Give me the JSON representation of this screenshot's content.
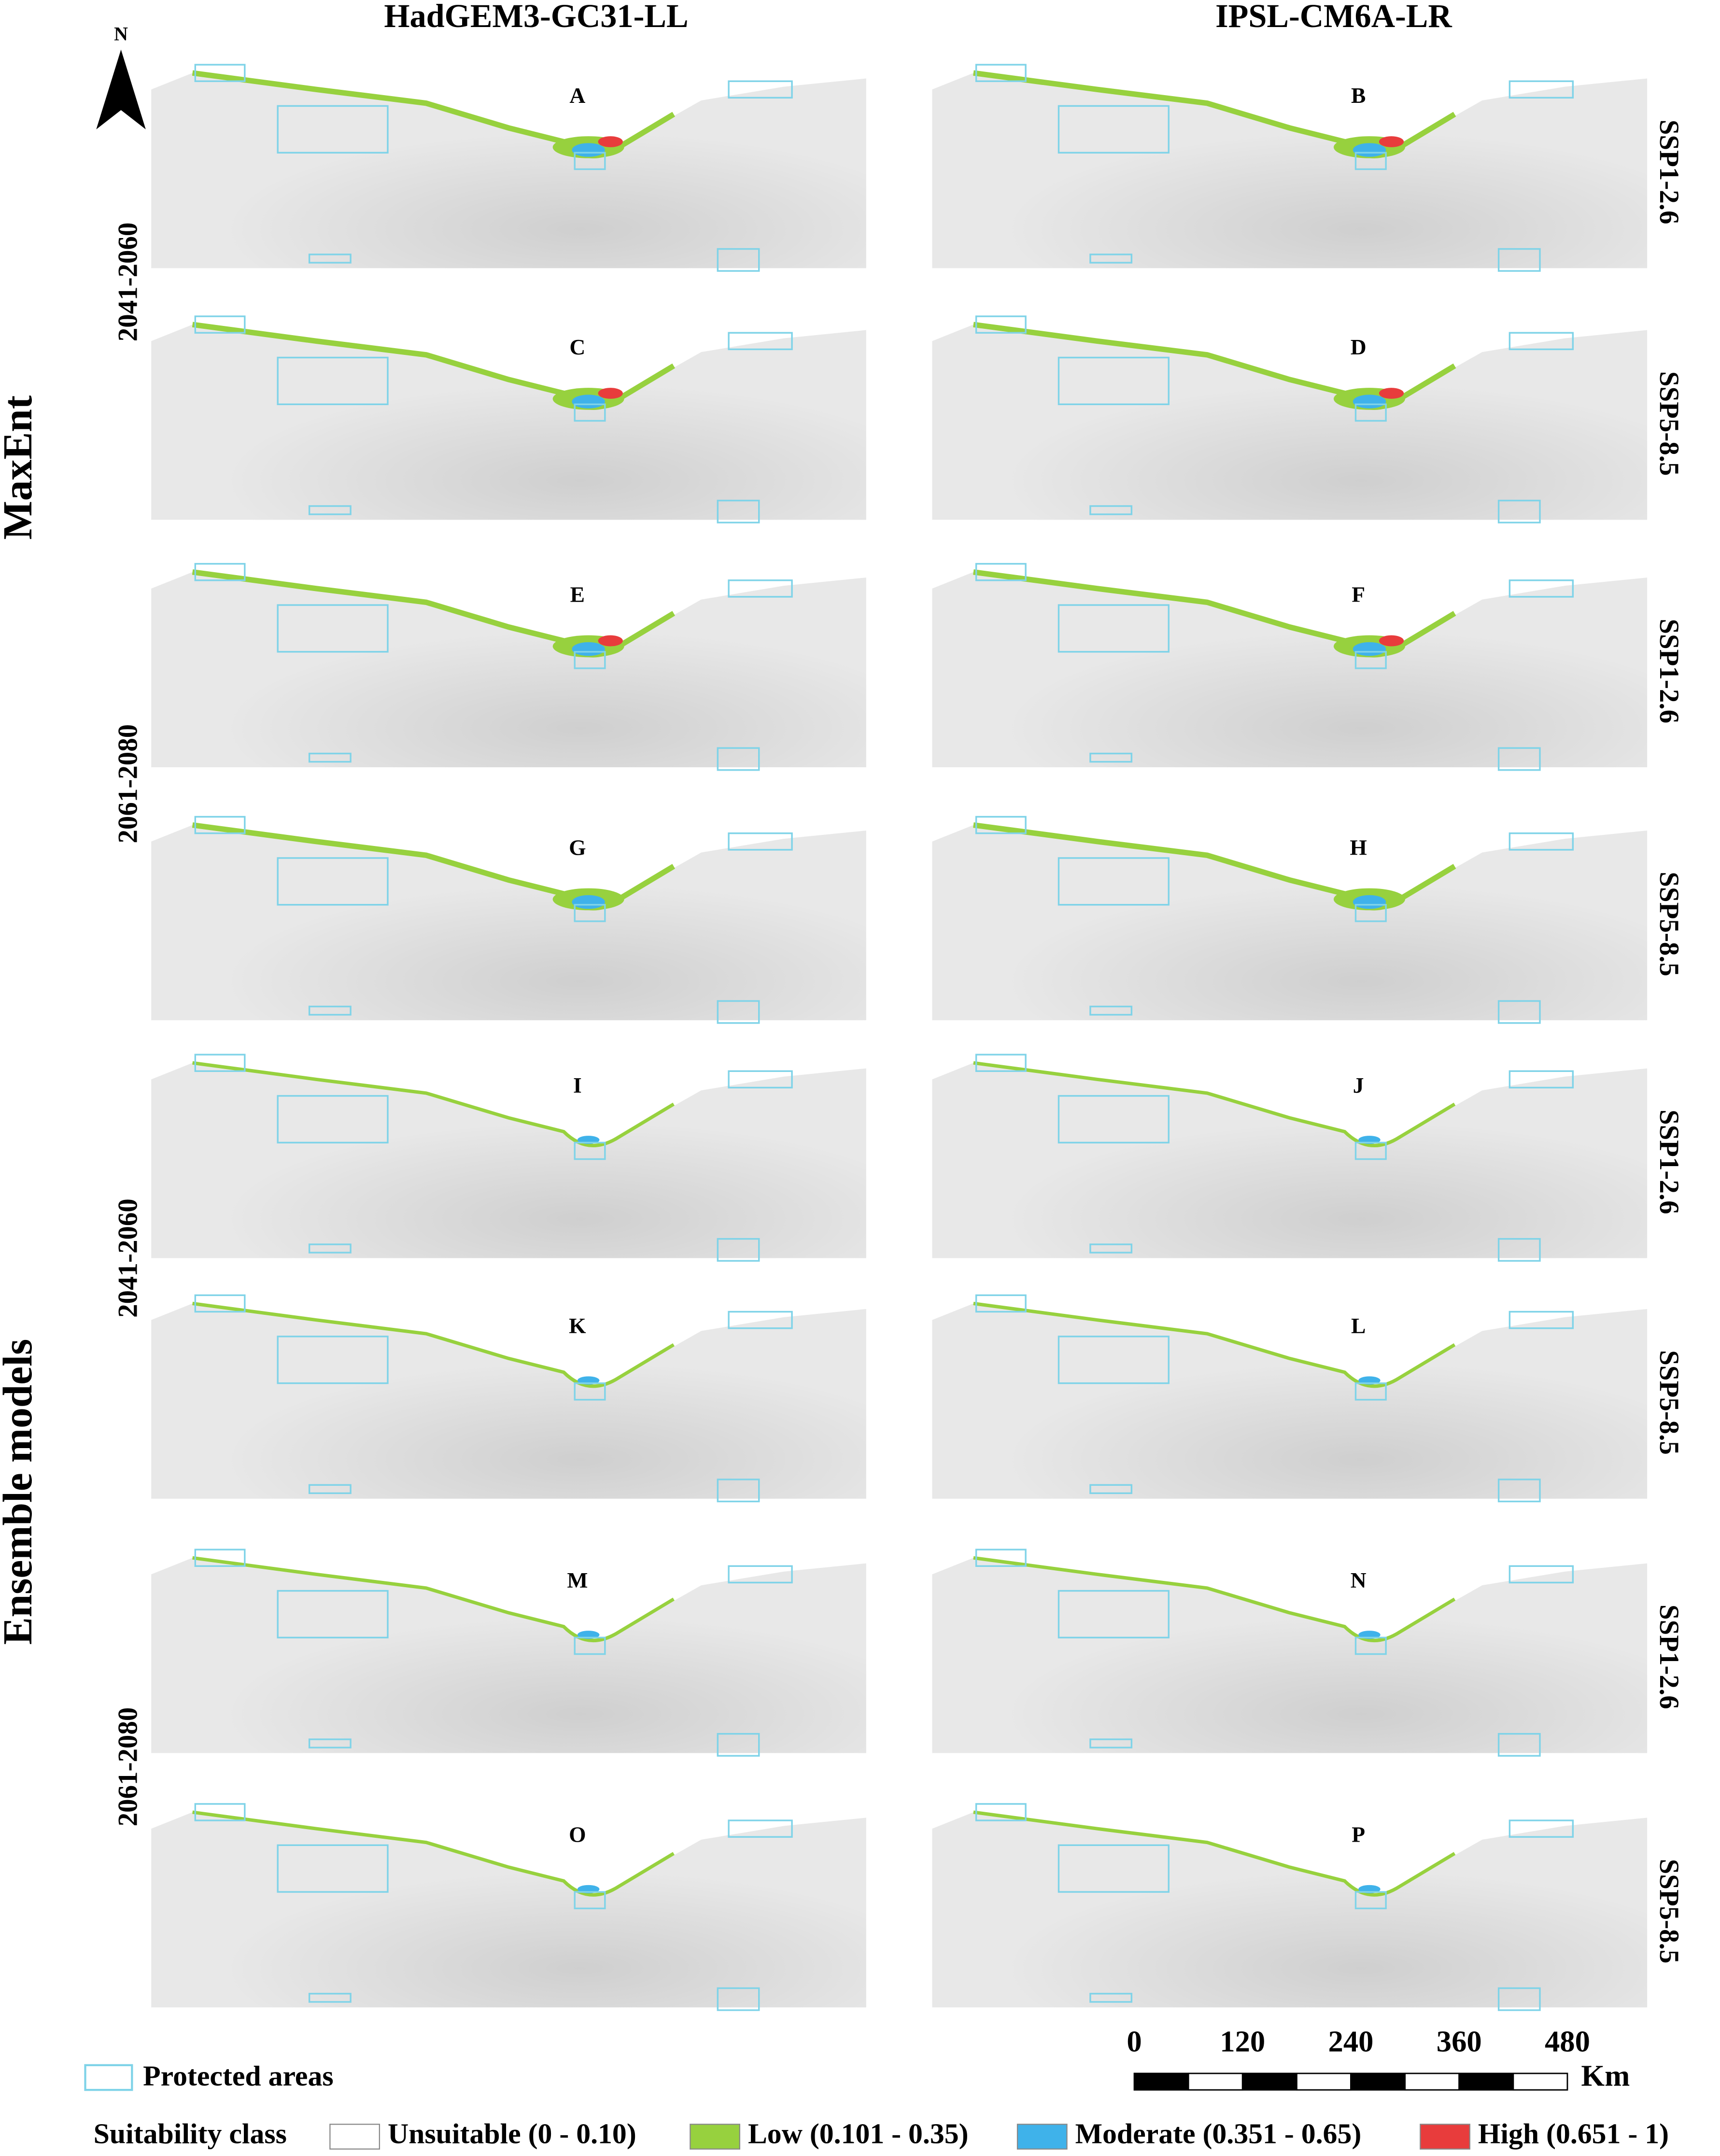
{
  "columns": [
    "HadGEM3-GC31-LL",
    "IPSL-CM6A-LR"
  ],
  "methods": [
    "MaxEnt",
    "Ensemble models"
  ],
  "periods": [
    "2041-2060",
    "2061-2080",
    "2041-2060",
    "2061-2080"
  ],
  "scenarios": [
    "SSP1-2.6",
    "SSP5-8.5",
    "SSP1-2.6",
    "SSP5-8.5",
    "SSP1-2.6",
    "SSP5-8.5",
    "SSP1-2.6",
    "SSP5-8.5"
  ],
  "panels": [
    "A",
    "B",
    "C",
    "D",
    "E",
    "F",
    "G",
    "H",
    "I",
    "J",
    "K",
    "L",
    "M",
    "N",
    "O",
    "P"
  ],
  "north": "N",
  "scale_bar": {
    "ticks": [
      0,
      120,
      240,
      360,
      480
    ],
    "unit": "Km"
  },
  "legend": {
    "protected": "Protected areas",
    "protected_color": "#7fd3e8",
    "title": "Suitability class",
    "classes": [
      {
        "label": "Unsuitable (0 - 0.10)",
        "color": "#ffffff"
      },
      {
        "label": "Low (0.101 - 0.35)",
        "color": "#97d13e"
      },
      {
        "label": "Moderate (0.351 - 0.65)",
        "color": "#3fb2ea"
      },
      {
        "label": "High (0.651 - 1)",
        "color": "#e83c3c"
      }
    ]
  }
}
